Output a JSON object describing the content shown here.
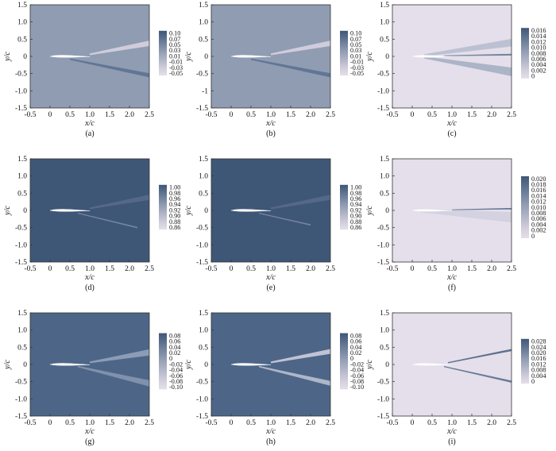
{
  "figure": {
    "colors": {
      "dark": "#3f5777",
      "mid": "#8f9cb2",
      "light": "#d4cfdd",
      "pale": "#e4dfea",
      "white": "#ffffff"
    }
  },
  "chart_data": [
    {
      "type": "heatmap",
      "label": "(a)",
      "xlabel": "x/c",
      "ylabel": "y/c",
      "xlim": [
        -0.5,
        2.5
      ],
      "ylim": [
        -1.5,
        1.5
      ],
      "xticks": [
        "-0.5",
        "0",
        "0.5",
        "1.0",
        "1.5",
        "2.0",
        "2.5"
      ],
      "yticks": [
        "1.5",
        "1.0",
        "0.5",
        "0",
        "-0.5",
        "-1.0",
        "-1.5"
      ],
      "colorbar": [
        "0.10",
        "0.07",
        "0.05",
        "0.03",
        "0.01",
        "-0.01",
        "-0.03",
        "-0.05"
      ],
      "background": "#8f9cb2",
      "wakes": [
        {
          "x": [
            1.0,
            2.5
          ],
          "y": [
            0.06,
            0.38
          ],
          "width": [
            0.05,
            0.16
          ],
          "color": "#d4cfdd"
        },
        {
          "x": [
            0.5,
            2.5
          ],
          "y": [
            -0.08,
            -0.55
          ],
          "width": [
            0.04,
            0.12
          ],
          "color": "#5f7493"
        }
      ]
    },
    {
      "type": "heatmap",
      "label": "(b)",
      "xlabel": "x/c",
      "ylabel": "y/c",
      "xlim": [
        -0.5,
        2.5
      ],
      "ylim": [
        -1.5,
        1.5
      ],
      "xticks": [
        "-0.5",
        "0",
        "0.5",
        "1.0",
        "1.5",
        "2.0",
        "2.5"
      ],
      "yticks": [
        "1.5",
        "1.0",
        "0.5",
        "0",
        "-0.5",
        "-1",
        "-1.5"
      ],
      "colorbar": [
        "0.10",
        "0.07",
        "0.05",
        "0.03",
        "0.01",
        "-0.01",
        "-0.03",
        "-0.05"
      ],
      "background": "#8f9cb2",
      "wakes": [
        {
          "x": [
            1.0,
            2.5
          ],
          "y": [
            0.06,
            0.38
          ],
          "width": [
            0.05,
            0.16
          ],
          "color": "#d4cfdd"
        },
        {
          "x": [
            0.5,
            2.5
          ],
          "y": [
            -0.08,
            -0.55
          ],
          "width": [
            0.04,
            0.12
          ],
          "color": "#5f7493"
        }
      ]
    },
    {
      "type": "heatmap",
      "label": "(c)",
      "xlabel": "x/c",
      "ylabel": "y/c",
      "xlim": [
        -0.5,
        2.5
      ],
      "ylim": [
        -1.5,
        1.5
      ],
      "xticks": [
        "-0.5",
        "0",
        "0.5",
        "1.0",
        "1.5",
        "2.0",
        "2.5"
      ],
      "yticks": [
        "1.5",
        "1.0",
        "0.5",
        "0",
        "-0.5",
        "-1.0",
        "-1.5"
      ],
      "colorbar": [
        "0.016",
        "0.014",
        "0.012",
        "0.010",
        "0.008",
        "0.006",
        "0.004",
        "0.002",
        "0"
      ],
      "background": "#e4dfea",
      "wakes": [
        {
          "x": [
            0.3,
            2.5
          ],
          "y": [
            0.03,
            0.4
          ],
          "width": [
            0.06,
            0.22
          ],
          "color": "#b8bfd1"
        },
        {
          "x": [
            0.3,
            2.5
          ],
          "y": [
            -0.03,
            -0.45
          ],
          "width": [
            0.06,
            0.25
          ],
          "color": "#a9b1c6"
        },
        {
          "x": [
            0.8,
            2.5
          ],
          "y": [
            0.02,
            0.05
          ],
          "width": [
            0.02,
            0.05
          ],
          "color": "#6d7f9b"
        }
      ]
    },
    {
      "type": "heatmap",
      "label": "(d)",
      "xlabel": "x/c",
      "ylabel": "y/c",
      "xlim": [
        -0.5,
        2.5
      ],
      "ylim": [
        -1.5,
        1.5
      ],
      "xticks": [
        "-0.5",
        "0",
        "0.5",
        "1.0",
        "1.5",
        "2.0",
        "2.5"
      ],
      "yticks": [
        "1.5",
        "1.0",
        "0.5",
        "0",
        "-0.5",
        "-1.0",
        "-1.5"
      ],
      "colorbar": [
        "1.00",
        "0.98",
        "0.96",
        "0.94",
        "0.92",
        "0.90",
        "0.88",
        "0.86"
      ],
      "background": "#3f5777",
      "wakes": [
        {
          "x": [
            1.0,
            2.5
          ],
          "y": [
            0.06,
            0.38
          ],
          "width": [
            0.05,
            0.15
          ],
          "color": "#56698a"
        },
        {
          "x": [
            0.7,
            2.2
          ],
          "y": [
            -0.08,
            -0.5
          ],
          "width": [
            0.03,
            0.04
          ],
          "color": "#7788a3"
        }
      ]
    },
    {
      "type": "heatmap",
      "label": "(e)",
      "xlabel": "x/c",
      "ylabel": "y/c",
      "xlim": [
        -0.5,
        2.5
      ],
      "ylim": [
        -1.5,
        1.5
      ],
      "xticks": [
        "-0.5",
        "0",
        "0.5",
        "1.0",
        "1.5",
        "2.0",
        "2.5"
      ],
      "yticks": [
        "1.5",
        "1.0",
        "0.5",
        "0",
        "-0.5",
        "-1.0",
        "-1.5"
      ],
      "colorbar": [
        "1.00",
        "0.98",
        "0.96",
        "0.94",
        "0.92",
        "0.90",
        "0.88",
        "0.86"
      ],
      "background": "#3f5777",
      "wakes": [
        {
          "x": [
            1.0,
            2.5
          ],
          "y": [
            0.06,
            0.38
          ],
          "width": [
            0.05,
            0.15
          ],
          "color": "#56698a"
        },
        {
          "x": [
            0.7,
            2.0
          ],
          "y": [
            -0.08,
            -0.42
          ],
          "width": [
            0.03,
            0.04
          ],
          "color": "#7788a3"
        }
      ]
    },
    {
      "type": "heatmap",
      "label": "(f)",
      "xlabel": "x/c",
      "ylabel": "y/c",
      "xlim": [
        -0.5,
        2.5
      ],
      "ylim": [
        -1.5,
        1.5
      ],
      "xticks": [
        "-0.5",
        "0",
        "0.5",
        "1.0",
        "1.5",
        "2.0",
        "2.5"
      ],
      "yticks": [
        "1.5",
        "1.0",
        "0.5",
        "0",
        "-0.5",
        "-1.0",
        "-1.5"
      ],
      "colorbar": [
        "0.020",
        "0.018",
        "0.016",
        "0.014",
        "0.012",
        "0.010",
        "0.008",
        "0.006",
        "0.004",
        "0.002",
        "0"
      ],
      "background": "#e4dfea",
      "wakes": [
        {
          "x": [
            1.0,
            2.5
          ],
          "y": [
            0.02,
            0.05
          ],
          "width": [
            0.02,
            0.04
          ],
          "color": "#5a6d8d"
        },
        {
          "x": [
            0.2,
            2.5
          ],
          "y": [
            0.0,
            -0.2
          ],
          "width": [
            0.1,
            0.3
          ],
          "color": "#d3d0df"
        }
      ]
    },
    {
      "type": "heatmap",
      "label": "(g)",
      "xlabel": "x/c",
      "ylabel": "y/c",
      "xlim": [
        -0.5,
        2.5
      ],
      "ylim": [
        -1.5,
        1.5
      ],
      "xticks": [
        "-0.5",
        "0",
        "0.5",
        "1.0",
        "1.5",
        "2.0",
        "2.5"
      ],
      "yticks": [
        "1.5",
        "1.0",
        "0.5",
        "0",
        "-0.5",
        "-1.0",
        "-1.5"
      ],
      "colorbar": [
        "0.08",
        "0.06",
        "0.04",
        "0.02",
        "0",
        "-0.02",
        "-0.04",
        "-0.06",
        "-0.08",
        "-0.10"
      ],
      "background": "#4d6687",
      "wakes": [
        {
          "x": [
            1.0,
            2.5
          ],
          "y": [
            0.06,
            0.35
          ],
          "width": [
            0.05,
            0.18
          ],
          "color": "#8e9fb8"
        },
        {
          "x": [
            0.7,
            2.5
          ],
          "y": [
            -0.06,
            -0.55
          ],
          "width": [
            0.04,
            0.18
          ],
          "color": "#8293ae"
        }
      ]
    },
    {
      "type": "heatmap",
      "label": "(h)",
      "xlabel": "x/c",
      "ylabel": "y/c",
      "xlim": [
        -0.5,
        2.5
      ],
      "ylim": [
        -1.5,
        1.5
      ],
      "xticks": [
        "-0.5",
        "0",
        "0.5",
        "1.0",
        "1.5",
        "2.0",
        "2.5"
      ],
      "yticks": [
        "1.5",
        "1.0",
        "0.5",
        "0",
        "-0.5",
        "-1.0",
        "-1.5"
      ],
      "colorbar": [
        "0.08",
        "0.06",
        "0.04",
        "0.02",
        "0",
        "-0.02",
        "-0.04",
        "-0.06",
        "-0.08",
        "-0.10"
      ],
      "background": "#4d6687",
      "wakes": [
        {
          "x": [
            1.0,
            2.5
          ],
          "y": [
            0.06,
            0.38
          ],
          "width": [
            0.05,
            0.14
          ],
          "color": "#c6c8d8"
        },
        {
          "x": [
            0.7,
            2.5
          ],
          "y": [
            -0.06,
            -0.55
          ],
          "width": [
            0.04,
            0.14
          ],
          "color": "#b3bbcd"
        }
      ]
    },
    {
      "type": "heatmap",
      "label": "(i)",
      "xlabel": "x/c",
      "ylabel": "y/c",
      "xlim": [
        -0.5,
        2.5
      ],
      "ylim": [
        -1.5,
        1.5
      ],
      "xticks": [
        "-0.5",
        "0",
        "0.5",
        "1.0",
        "1.5",
        "2.0",
        "2.5"
      ],
      "yticks": [
        "1.5",
        "1.0",
        "0.5",
        "0",
        "-0.5",
        "-1.0",
        "-1.5"
      ],
      "colorbar": [
        "0.028",
        "0.024",
        "0.020",
        "0.016",
        "0.012",
        "0.008",
        "0.004",
        "0"
      ],
      "background": "#e4dfea",
      "wakes": [
        {
          "x": [
            0.9,
            2.5
          ],
          "y": [
            0.05,
            0.42
          ],
          "width": [
            0.03,
            0.06
          ],
          "color": "#55698a"
        },
        {
          "x": [
            0.8,
            2.5
          ],
          "y": [
            -0.06,
            -0.5
          ],
          "width": [
            0.03,
            0.06
          ],
          "color": "#617494"
        }
      ]
    }
  ]
}
